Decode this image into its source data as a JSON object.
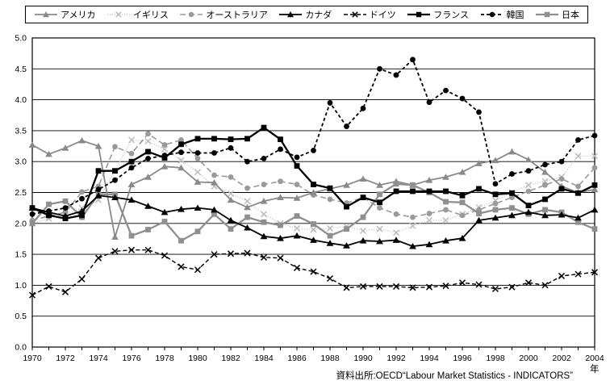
{
  "footer": {
    "source": "資料出所:OECD“Labour Market Statistics - INDICATORS”",
    "x_unit": "年"
  },
  "chart_data": {
    "type": "line",
    "x_start": 1970,
    "x_end": 2004,
    "x": [
      1970,
      1971,
      1972,
      1973,
      1974,
      1975,
      1976,
      1977,
      1978,
      1979,
      1980,
      1981,
      1982,
      1983,
      1984,
      1985,
      1986,
      1987,
      1988,
      1989,
      1990,
      1991,
      1992,
      1993,
      1994,
      1995,
      1996,
      1997,
      1998,
      1999,
      2000,
      2001,
      2002,
      2003,
      2004
    ],
    "xtick_label_step": 2,
    "ylim": [
      0.0,
      5.0
    ],
    "ytick_step": 0.5,
    "grid": "horizontal",
    "legend_position": "top",
    "xlabel": "年",
    "source_note": "資料出所:OECD“Labour Market Statistics - INDICATORS”",
    "series": [
      {
        "id": "usa",
        "label": "アメリカ",
        "color": "#8a8a8a",
        "dash": "",
        "width": 1.8,
        "marker": "triangle",
        "values": [
          3.27,
          3.12,
          3.22,
          3.34,
          3.25,
          1.78,
          2.63,
          2.75,
          2.92,
          2.9,
          2.67,
          2.66,
          2.38,
          2.26,
          2.36,
          2.42,
          2.41,
          2.5,
          2.56,
          2.62,
          2.72,
          2.62,
          2.68,
          2.62,
          2.7,
          2.75,
          2.83,
          2.97,
          3.02,
          3.16,
          3.03,
          2.83,
          2.6,
          2.5,
          2.55
        ]
      },
      {
        "id": "uk",
        "label": "イギリス",
        "color": "#bdbdbd",
        "dash": "1,2",
        "width": 1.3,
        "marker": "x",
        "values": [
          2.0,
          2.08,
          2.15,
          2.25,
          2.38,
          2.85,
          3.35,
          3.33,
          3.2,
          3.02,
          2.83,
          2.6,
          2.48,
          2.36,
          2.15,
          2.0,
          1.92,
          1.9,
          1.92,
          1.95,
          1.88,
          1.91,
          1.85,
          1.96,
          2.05,
          2.05,
          2.15,
          2.26,
          2.37,
          2.5,
          2.62,
          2.68,
          2.75,
          3.09,
          3.09
        ]
      },
      {
        "id": "australia",
        "label": "オーストラリア",
        "color": "#9a9a9a",
        "dash": "7,4",
        "width": 1.6,
        "marker": "circle",
        "values": [
          2.05,
          2.12,
          2.18,
          2.51,
          2.6,
          3.24,
          3.13,
          3.45,
          3.27,
          3.35,
          3.05,
          2.78,
          2.75,
          2.57,
          2.63,
          2.68,
          2.63,
          2.46,
          2.39,
          2.33,
          2.42,
          2.25,
          2.15,
          2.1,
          2.16,
          2.22,
          2.13,
          2.22,
          2.32,
          2.42,
          2.52,
          2.62,
          2.72,
          2.6,
          2.9
        ]
      },
      {
        "id": "canada",
        "label": "カナダ",
        "color": "#000000",
        "dash": "",
        "width": 1.8,
        "marker": "triangle",
        "values": [
          2.25,
          2.18,
          2.12,
          2.2,
          2.45,
          2.42,
          2.38,
          2.28,
          2.18,
          2.23,
          2.25,
          2.22,
          2.05,
          1.93,
          1.79,
          1.76,
          1.8,
          1.73,
          1.68,
          1.64,
          1.72,
          1.71,
          1.73,
          1.63,
          1.66,
          1.72,
          1.76,
          2.05,
          2.09,
          2.13,
          2.18,
          2.13,
          2.14,
          2.09,
          2.22
        ]
      },
      {
        "id": "germany",
        "label": "ドイツ",
        "color": "#000000",
        "dash": "5,3",
        "width": 1.4,
        "marker": "x",
        "values": [
          0.84,
          0.98,
          0.89,
          1.1,
          1.44,
          1.55,
          1.57,
          1.57,
          1.48,
          1.3,
          1.25,
          1.5,
          1.51,
          1.52,
          1.45,
          1.44,
          1.28,
          1.22,
          1.11,
          0.96,
          0.98,
          0.98,
          0.98,
          0.96,
          0.97,
          0.99,
          1.04,
          1.01,
          0.94,
          0.97,
          1.04,
          1.0,
          1.15,
          1.18,
          1.21
        ]
      },
      {
        "id": "france",
        "label": "フランス",
        "color": "#000000",
        "dash": "",
        "width": 2.3,
        "marker": "square",
        "values": [
          2.25,
          2.13,
          2.08,
          2.13,
          2.85,
          2.85,
          3.0,
          3.16,
          3.06,
          3.28,
          3.37,
          3.37,
          3.36,
          3.37,
          3.55,
          3.36,
          2.93,
          2.63,
          2.57,
          2.27,
          2.42,
          2.34,
          2.52,
          2.52,
          2.52,
          2.52,
          2.45,
          2.56,
          2.47,
          2.49,
          2.29,
          2.39,
          2.56,
          2.49,
          2.62
        ]
      },
      {
        "id": "korea",
        "label": "韓国",
        "color": "#000000",
        "dash": "4,3",
        "width": 1.8,
        "marker": "circle",
        "values": [
          2.15,
          2.2,
          2.25,
          2.4,
          2.55,
          2.7,
          2.9,
          3.05,
          3.1,
          3.15,
          3.14,
          3.14,
          3.22,
          3.0,
          3.05,
          3.2,
          3.07,
          3.18,
          3.95,
          3.57,
          3.86,
          4.5,
          4.4,
          4.65,
          3.96,
          4.15,
          4.02,
          3.8,
          2.64,
          2.8,
          2.85,
          2.95,
          3.0,
          3.35,
          3.42
        ]
      },
      {
        "id": "japan",
        "label": "日本",
        "color": "#8f8f8f",
        "dash": "",
        "width": 2.3,
        "marker": "square",
        "values": [
          2.0,
          2.31,
          2.36,
          2.1,
          2.47,
          2.47,
          1.8,
          1.9,
          2.03,
          1.72,
          1.87,
          2.15,
          1.91,
          2.1,
          2.02,
          1.97,
          2.12,
          1.99,
          1.8,
          1.91,
          2.1,
          2.47,
          2.64,
          2.62,
          2.5,
          2.35,
          2.34,
          2.16,
          2.22,
          2.25,
          2.15,
          2.22,
          2.18,
          2.02,
          1.91
        ]
      }
    ]
  }
}
